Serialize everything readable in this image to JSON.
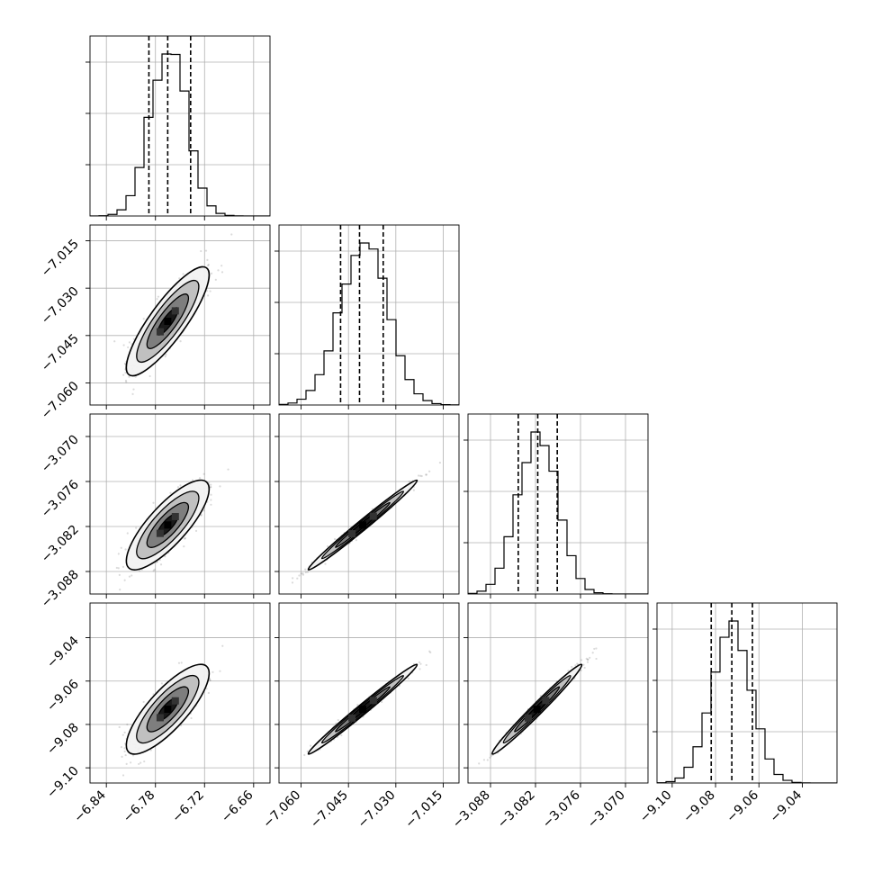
{
  "chart_data": {
    "type": "corner",
    "title": "",
    "parameters": [
      {
        "range": [
          -6.86,
          -6.64
        ],
        "ticks": [
          -6.84,
          -6.78,
          -6.72,
          -6.66
        ],
        "tick_labels": [
          "−6.84",
          "−6.78",
          "−6.72",
          "−6.66"
        ],
        "mean": -6.765,
        "sigma": 0.022,
        "quantiles": [
          -6.788,
          -6.765,
          -6.737
        ]
      },
      {
        "range": [
          -7.067,
          -7.01
        ],
        "ticks": [
          -7.06,
          -7.045,
          -7.03,
          -7.015
        ],
        "tick_labels": [
          "−7.060",
          "−7.045",
          "−7.030",
          "−7.015"
        ],
        "mean": -7.0405,
        "sigma": 0.0075,
        "quantiles": [
          -7.0475,
          -7.0415,
          -7.034
        ]
      },
      {
        "range": [
          -3.091,
          -3.067
        ],
        "ticks": [
          -3.088,
          -3.082,
          -3.076,
          -3.07
        ],
        "tick_labels": [
          "−3.088",
          "−3.082",
          "−3.076",
          "−3.070"
        ],
        "mean": -3.0818,
        "sigma": 0.0026,
        "quantiles": [
          -3.0843,
          -3.0817,
          -3.0791
        ]
      },
      {
        "range": [
          -9.107,
          -9.024
        ],
        "ticks": [
          -9.1,
          -9.08,
          -9.06,
          -9.04
        ],
        "tick_labels": [
          "−9.10",
          "−9.08",
          "−9.06",
          "−9.04"
        ],
        "mean": -9.073,
        "sigma": 0.009,
        "quantiles": [
          -9.082,
          -9.0725,
          -9.063
        ]
      }
    ],
    "correlations": [
      [
        1,
        0.85,
        0.8,
        0.8
      ],
      [
        0.85,
        1,
        0.99,
        0.99
      ],
      [
        0.8,
        0.99,
        1,
        0.985
      ],
      [
        0.8,
        0.99,
        0.985,
        1
      ]
    ],
    "histogram_bins": 20,
    "contour_levels_sigma": [
      0.5,
      1.0,
      1.5,
      2.0
    ],
    "grid": true,
    "colors": {
      "line": "#000000",
      "samples": "#4d4d4d",
      "grid": "#b0b0b0",
      "fill_light": "#f2f2f2",
      "fill_mid": "#bdbdbd",
      "fill_dark": "#7a7a7a",
      "fill_core": "#101010"
    }
  }
}
